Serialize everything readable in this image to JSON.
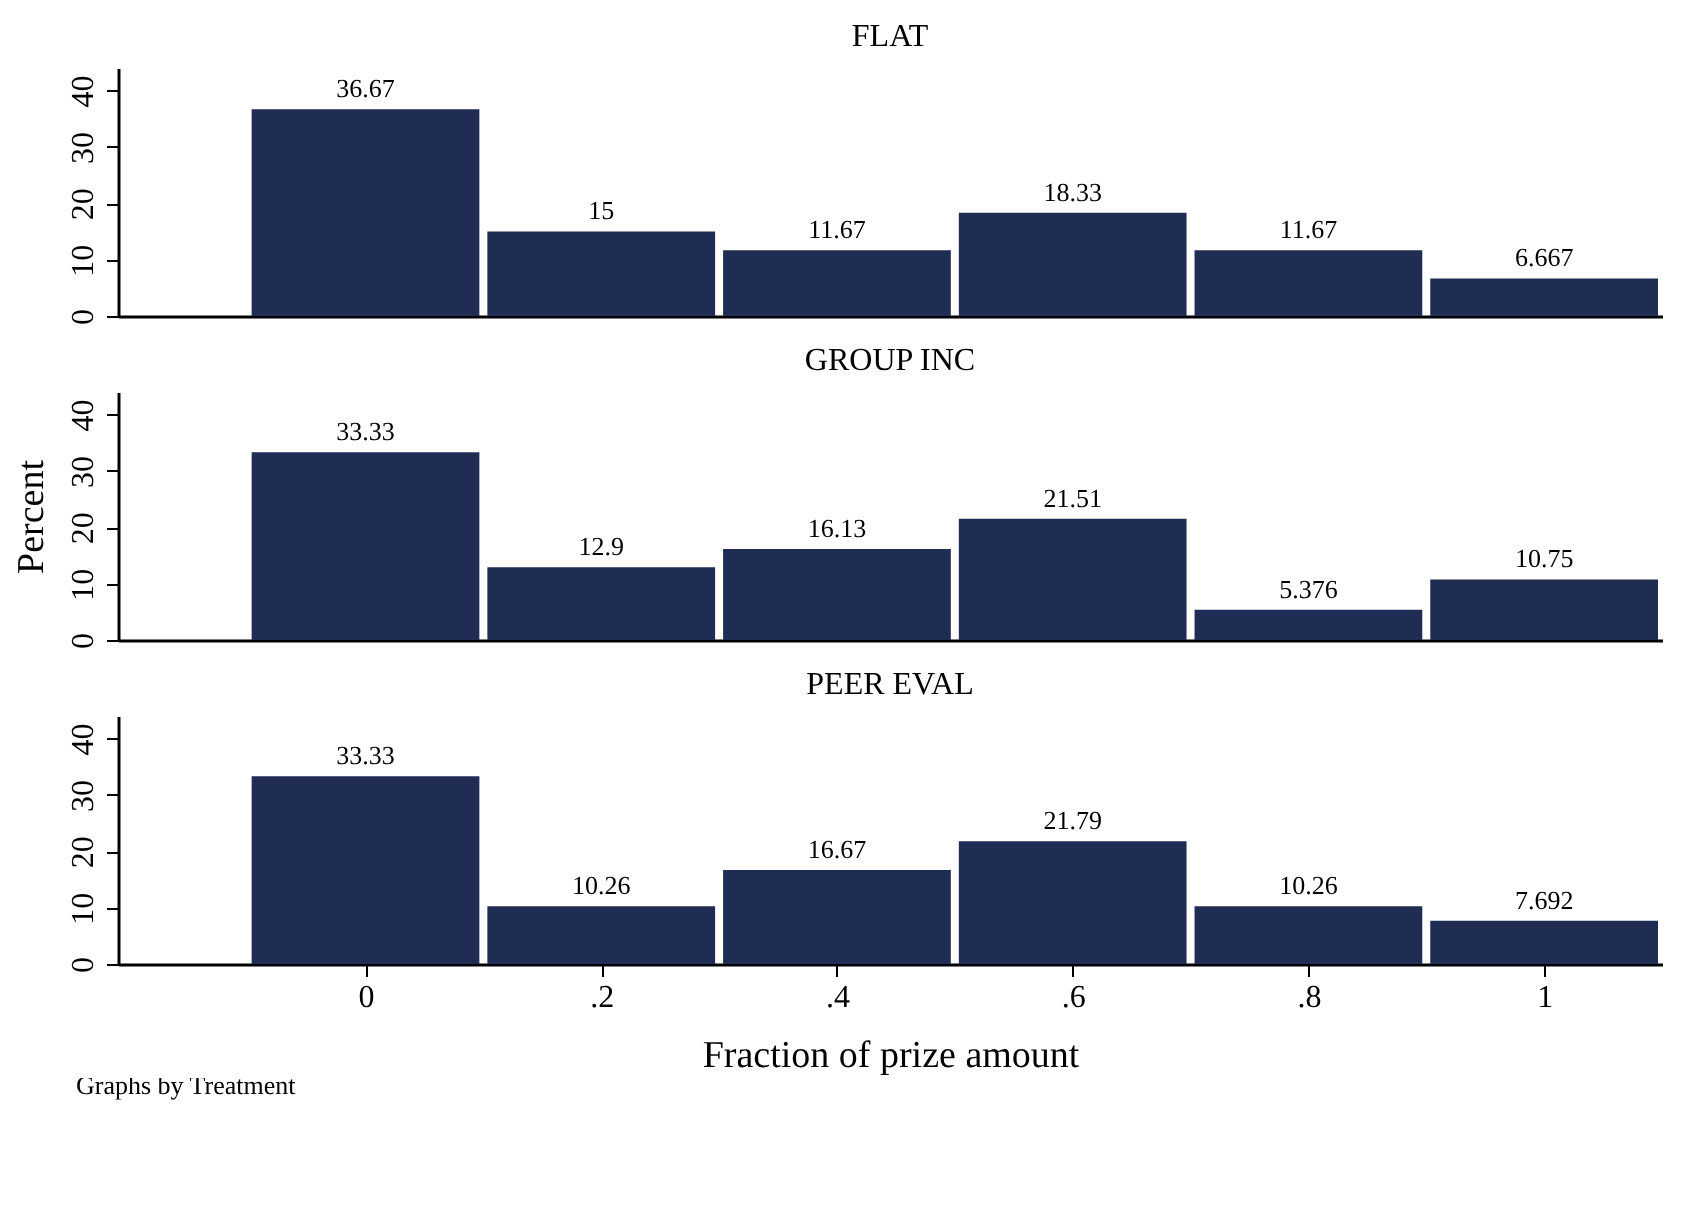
{
  "chart_data": [
    {
      "type": "histogram",
      "title": "FLAT",
      "bins": [
        -0.1,
        0.1,
        0.3,
        0.5,
        0.7,
        0.9,
        1.1
      ],
      "values": [
        36.67,
        15,
        11.67,
        18.33,
        11.67,
        6.667
      ],
      "value_labels": [
        "36.67",
        "15",
        "11.67",
        "18.33",
        "11.67",
        "6.667"
      ],
      "color": "#1f2d54",
      "xlim": [
        -0.21,
        1.1
      ],
      "ylim": [
        0,
        44
      ],
      "yticks": [
        0,
        10,
        20,
        30,
        40
      ],
      "tick_labels": "y"
    },
    {
      "type": "histogram",
      "title": "GROUP INC",
      "ylabel": "Percent",
      "bins": [
        -0.1,
        0.1,
        0.3,
        0.5,
        0.7,
        0.9,
        1.1
      ],
      "values": [
        33.33,
        12.9,
        16.13,
        21.51,
        5.376,
        10.75
      ],
      "value_labels": [
        "33.33",
        "12.9",
        "16.13",
        "21.51",
        "5.376",
        "10.75"
      ],
      "color": "#1f2d54",
      "xlim": [
        -0.21,
        1.1
      ],
      "ylim": [
        0,
        44
      ],
      "yticks": [
        0,
        10,
        20,
        30,
        40
      ],
      "tick_labels": "y"
    },
    {
      "type": "histogram",
      "title": "PEER EVAL",
      "xlabel": "Fraction of prize amount",
      "bins": [
        -0.1,
        0.1,
        0.3,
        0.5,
        0.7,
        0.9,
        1.1
      ],
      "values": [
        33.33,
        10.26,
        16.67,
        21.79,
        10.26,
        7.692
      ],
      "value_labels": [
        "33.33",
        "10.26",
        "16.67",
        "21.79",
        "10.26",
        "7.692"
      ],
      "color": "#1f2d54",
      "xlim": [
        -0.21,
        1.1
      ],
      "xticks": [
        0,
        {
          "value": 0.2,
          "label": ".2"
        },
        {
          "value": 0.4,
          "label": ".4"
        },
        {
          "value": 0.6,
          "label": ".6"
        },
        {
          "value": 0.8,
          "label": ".8"
        },
        1
      ],
      "ylim": [
        0,
        44
      ],
      "yticks": [
        0,
        10,
        20,
        30,
        40
      ],
      "annotations": [
        "Graphs by Treatment"
      ]
    }
  ]
}
